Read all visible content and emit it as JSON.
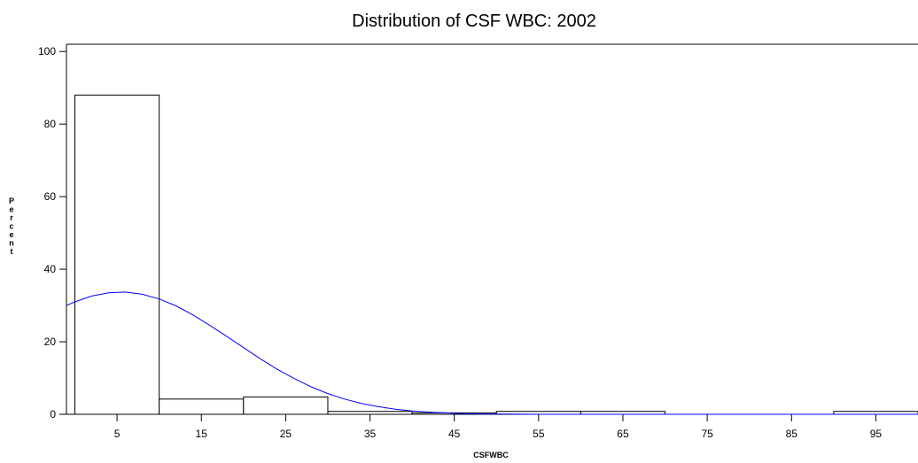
{
  "chart_data": {
    "type": "bar",
    "title": "Distribution of CSF WBC: 2002",
    "xlabel": "CSFWBC",
    "ylabel": "Percent",
    "categories": [
      "5",
      "15",
      "25",
      "35",
      "45",
      "55",
      "65",
      "75",
      "85",
      "95"
    ],
    "bin_edges": [
      0,
      10,
      20,
      30,
      40,
      50,
      60,
      70,
      80,
      90,
      100
    ],
    "values": [
      88,
      4.2,
      4.8,
      0.8,
      0.4,
      0.8,
      0.8,
      0,
      0,
      0.8
    ],
    "xlim": [
      -1,
      100
    ],
    "ylim": [
      0,
      102
    ],
    "yticks": [
      0,
      20,
      40,
      60,
      80,
      100
    ],
    "grid": false,
    "bar_fill": "#ffffff",
    "bar_stroke": "#000000",
    "fitted_curve": {
      "type": "normal",
      "color": "#0000ff",
      "x": [
        -1,
        0,
        2,
        4,
        6,
        8,
        10,
        12,
        14,
        16,
        18,
        20,
        22,
        24,
        26,
        28,
        30,
        32,
        34,
        36,
        38,
        40,
        42,
        44,
        46,
        48,
        50,
        55,
        60,
        70,
        80,
        90,
        100
      ],
      "y": [
        30.0,
        31.0,
        32.6,
        33.5,
        33.7,
        33.1,
        31.8,
        29.9,
        27.4,
        24.5,
        21.5,
        18.4,
        15.3,
        12.4,
        9.9,
        7.6,
        5.7,
        4.2,
        3.0,
        2.1,
        1.4,
        0.9,
        0.6,
        0.4,
        0.2,
        0.1,
        0.1,
        0,
        0,
        0,
        0,
        0,
        0
      ]
    }
  }
}
